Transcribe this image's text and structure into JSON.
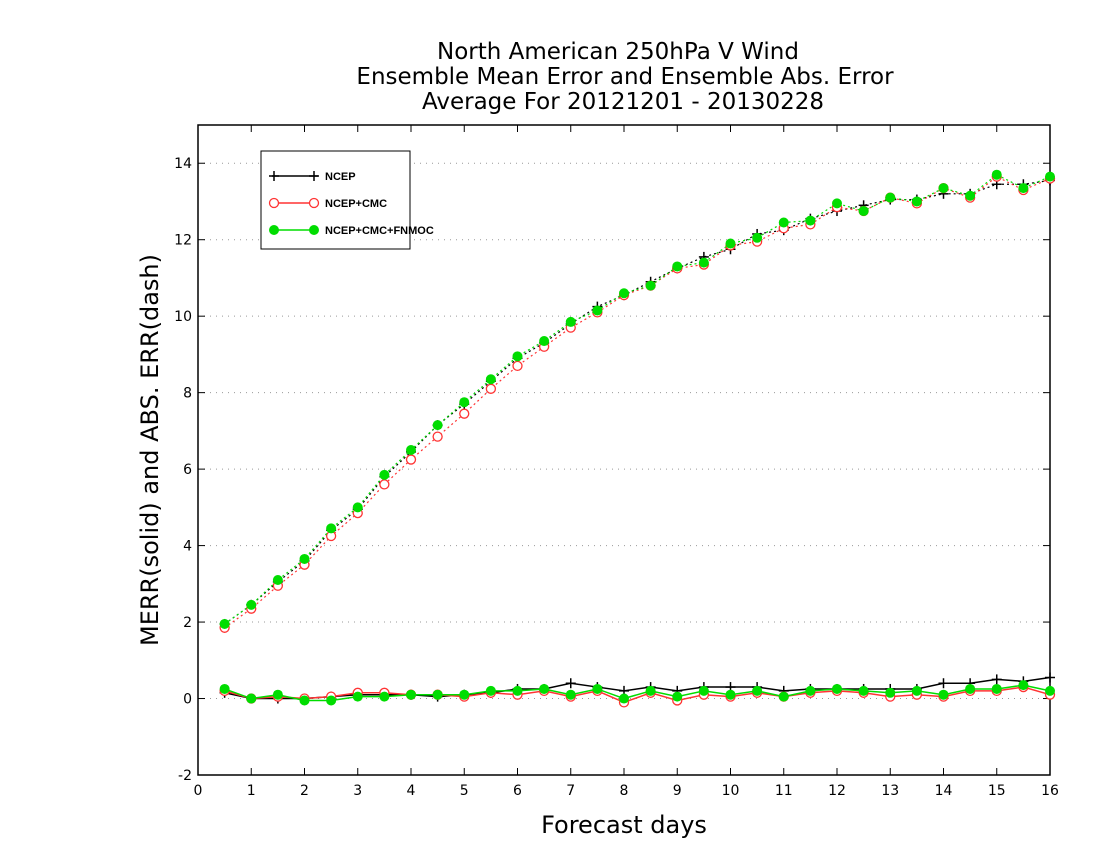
{
  "chart_data": {
    "type": "line",
    "title_lines": [
      "North American 250hPa V Wind",
      "Ensemble Mean Error and Ensemble Abs. Error",
      "Average For 20121201 - 20130228"
    ],
    "xlabel": "Forecast days",
    "ylabel": "MERR(solid) and ABS. ERR(dash)",
    "xlim": [
      0,
      16
    ],
    "ylim": [
      -2,
      15
    ],
    "xticks": [
      0,
      1,
      2,
      3,
      4,
      5,
      6,
      7,
      8,
      9,
      10,
      11,
      12,
      13,
      14,
      15,
      16
    ],
    "xtick_labels": [
      "0",
      "1",
      "2",
      "3",
      "4",
      "5",
      "6",
      "7",
      "8",
      "9",
      "10",
      "11",
      "12",
      "13",
      "14",
      "15",
      "16"
    ],
    "yticks": [
      -2,
      0,
      2,
      4,
      6,
      8,
      10,
      12,
      14
    ],
    "ytick_labels": [
      "-2",
      "0",
      "2",
      "4",
      "6",
      "8",
      "10",
      "12",
      "14"
    ],
    "grid": "horizontal-dotted",
    "legend_position": "top-left",
    "x": [
      0.5,
      1,
      1.5,
      2,
      2.5,
      3,
      3.5,
      4,
      4.5,
      5,
      5.5,
      6,
      6.5,
      7,
      7.5,
      8,
      8.5,
      9,
      9.5,
      10,
      10.5,
      11,
      11.5,
      12,
      12.5,
      13,
      13.5,
      14,
      14.5,
      15,
      15.5,
      16
    ],
    "series": [
      {
        "name": "NCEP",
        "color": "#000000",
        "marker": "plus",
        "merr": [
          0.15,
          0.0,
          0.0,
          0.0,
          0.05,
          0.1,
          0.1,
          0.1,
          0.05,
          0.1,
          0.15,
          0.25,
          0.25,
          0.4,
          0.3,
          0.2,
          0.3,
          0.2,
          0.3,
          0.3,
          0.3,
          0.2,
          0.25,
          0.25,
          0.25,
          0.25,
          0.25,
          0.4,
          0.4,
          0.5,
          0.45,
          0.55
        ],
        "abs_err": [
          1.95,
          2.45,
          3.05,
          3.6,
          4.4,
          4.95,
          5.8,
          6.45,
          7.15,
          7.7,
          8.3,
          8.9,
          9.3,
          9.8,
          10.25,
          10.55,
          10.9,
          11.25,
          11.55,
          11.75,
          12.15,
          12.25,
          12.55,
          12.75,
          12.9,
          13.05,
          13.05,
          13.2,
          13.2,
          13.45,
          13.45,
          13.55
        ]
      },
      {
        "name": "NCEP+CMC",
        "color": "#ff3333",
        "marker": "open-circle",
        "merr": [
          0.2,
          0.0,
          0.05,
          0.0,
          0.05,
          0.15,
          0.15,
          0.1,
          0.1,
          0.05,
          0.15,
          0.1,
          0.2,
          0.05,
          0.2,
          -0.1,
          0.15,
          -0.05,
          0.1,
          0.05,
          0.15,
          0.05,
          0.15,
          0.2,
          0.15,
          0.05,
          0.1,
          0.05,
          0.2,
          0.2,
          0.3,
          0.1
        ],
        "abs_err": [
          1.85,
          2.35,
          2.95,
          3.5,
          4.25,
          4.85,
          5.6,
          6.25,
          6.85,
          7.45,
          8.1,
          8.7,
          9.2,
          9.7,
          10.1,
          10.55,
          10.8,
          11.25,
          11.35,
          11.85,
          11.95,
          12.3,
          12.4,
          12.85,
          12.75,
          13.1,
          12.95,
          13.35,
          13.1,
          13.65,
          13.3,
          13.6
        ]
      },
      {
        "name": "NCEP+CMC+FNMOC",
        "color": "#00dd00",
        "marker": "filled-circle",
        "merr": [
          0.25,
          0.0,
          0.1,
          -0.05,
          -0.05,
          0.05,
          0.05,
          0.1,
          0.1,
          0.1,
          0.2,
          0.2,
          0.25,
          0.1,
          0.25,
          0.0,
          0.2,
          0.05,
          0.2,
          0.1,
          0.2,
          0.05,
          0.2,
          0.25,
          0.2,
          0.15,
          0.2,
          0.1,
          0.25,
          0.25,
          0.35,
          0.2
        ],
        "abs_err": [
          1.95,
          2.45,
          3.1,
          3.65,
          4.45,
          5.0,
          5.85,
          6.5,
          7.15,
          7.75,
          8.35,
          8.95,
          9.35,
          9.85,
          10.15,
          10.6,
          10.8,
          11.3,
          11.4,
          11.9,
          12.05,
          12.45,
          12.5,
          12.95,
          12.75,
          13.1,
          13.0,
          13.35,
          13.15,
          13.7,
          13.35,
          13.65
        ]
      }
    ]
  }
}
